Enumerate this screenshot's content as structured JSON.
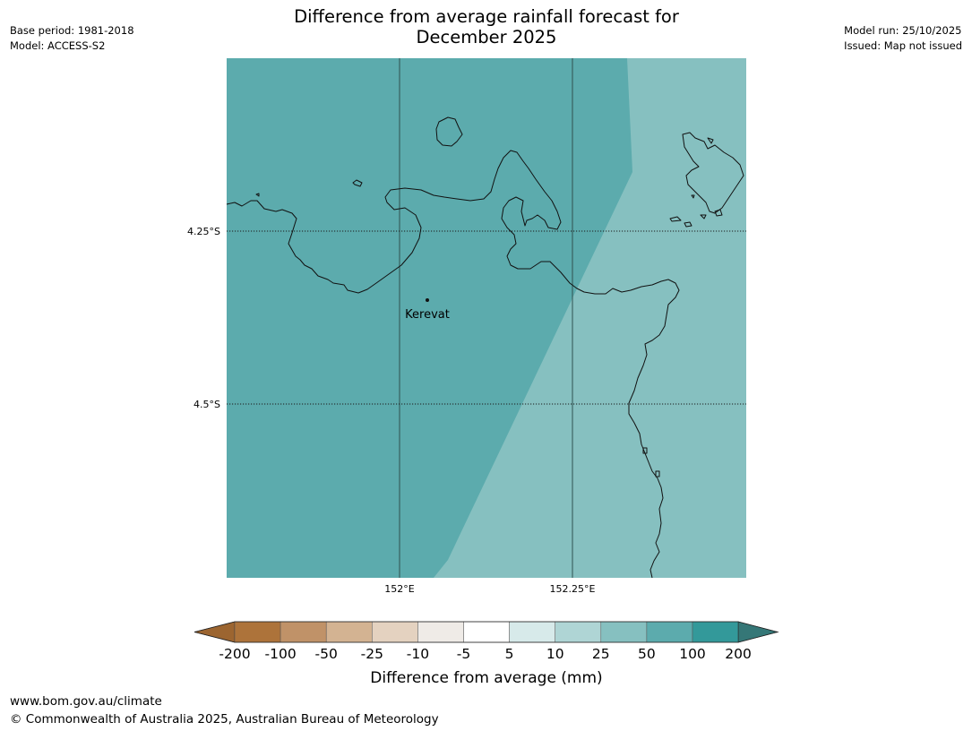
{
  "header": {
    "base_period": "Base period: 1981-2018",
    "model": "Model: ACCESS-S2",
    "model_run": "Model run: 25/10/2025",
    "issued": "Issued: Map not issued",
    "title_line1": "Difference from average rainfall forecast for",
    "title_line2": "December 2025"
  },
  "map": {
    "lat_labels": [
      "4.25°S",
      "4.5°S"
    ],
    "lon_labels": [
      "152°E",
      "152.25°E"
    ],
    "place_label": "Kerevat",
    "fill_colors": {
      "class_50_100": "#5cabad",
      "class_25_50": "#86c0c0"
    }
  },
  "colorbar": {
    "title": "Difference from average (mm)",
    "ticks": [
      "-200",
      "-100",
      "-50",
      "-25",
      "-10",
      "-5",
      "5",
      "10",
      "25",
      "50",
      "100",
      "200"
    ],
    "colors": [
      "#9c6530",
      "#ad733a",
      "#c09268",
      "#d3b392",
      "#e4d2c0",
      "#efebe7",
      "#ffffff",
      "#d7eaea",
      "#afd5d5",
      "#86c0c0",
      "#5cabad",
      "#33999a",
      "#357777"
    ]
  },
  "footer": {
    "url": "www.bom.gov.au/climate",
    "copyright": "© Commonwealth of Australia 2025, Australian Bureau of Meteorology"
  }
}
